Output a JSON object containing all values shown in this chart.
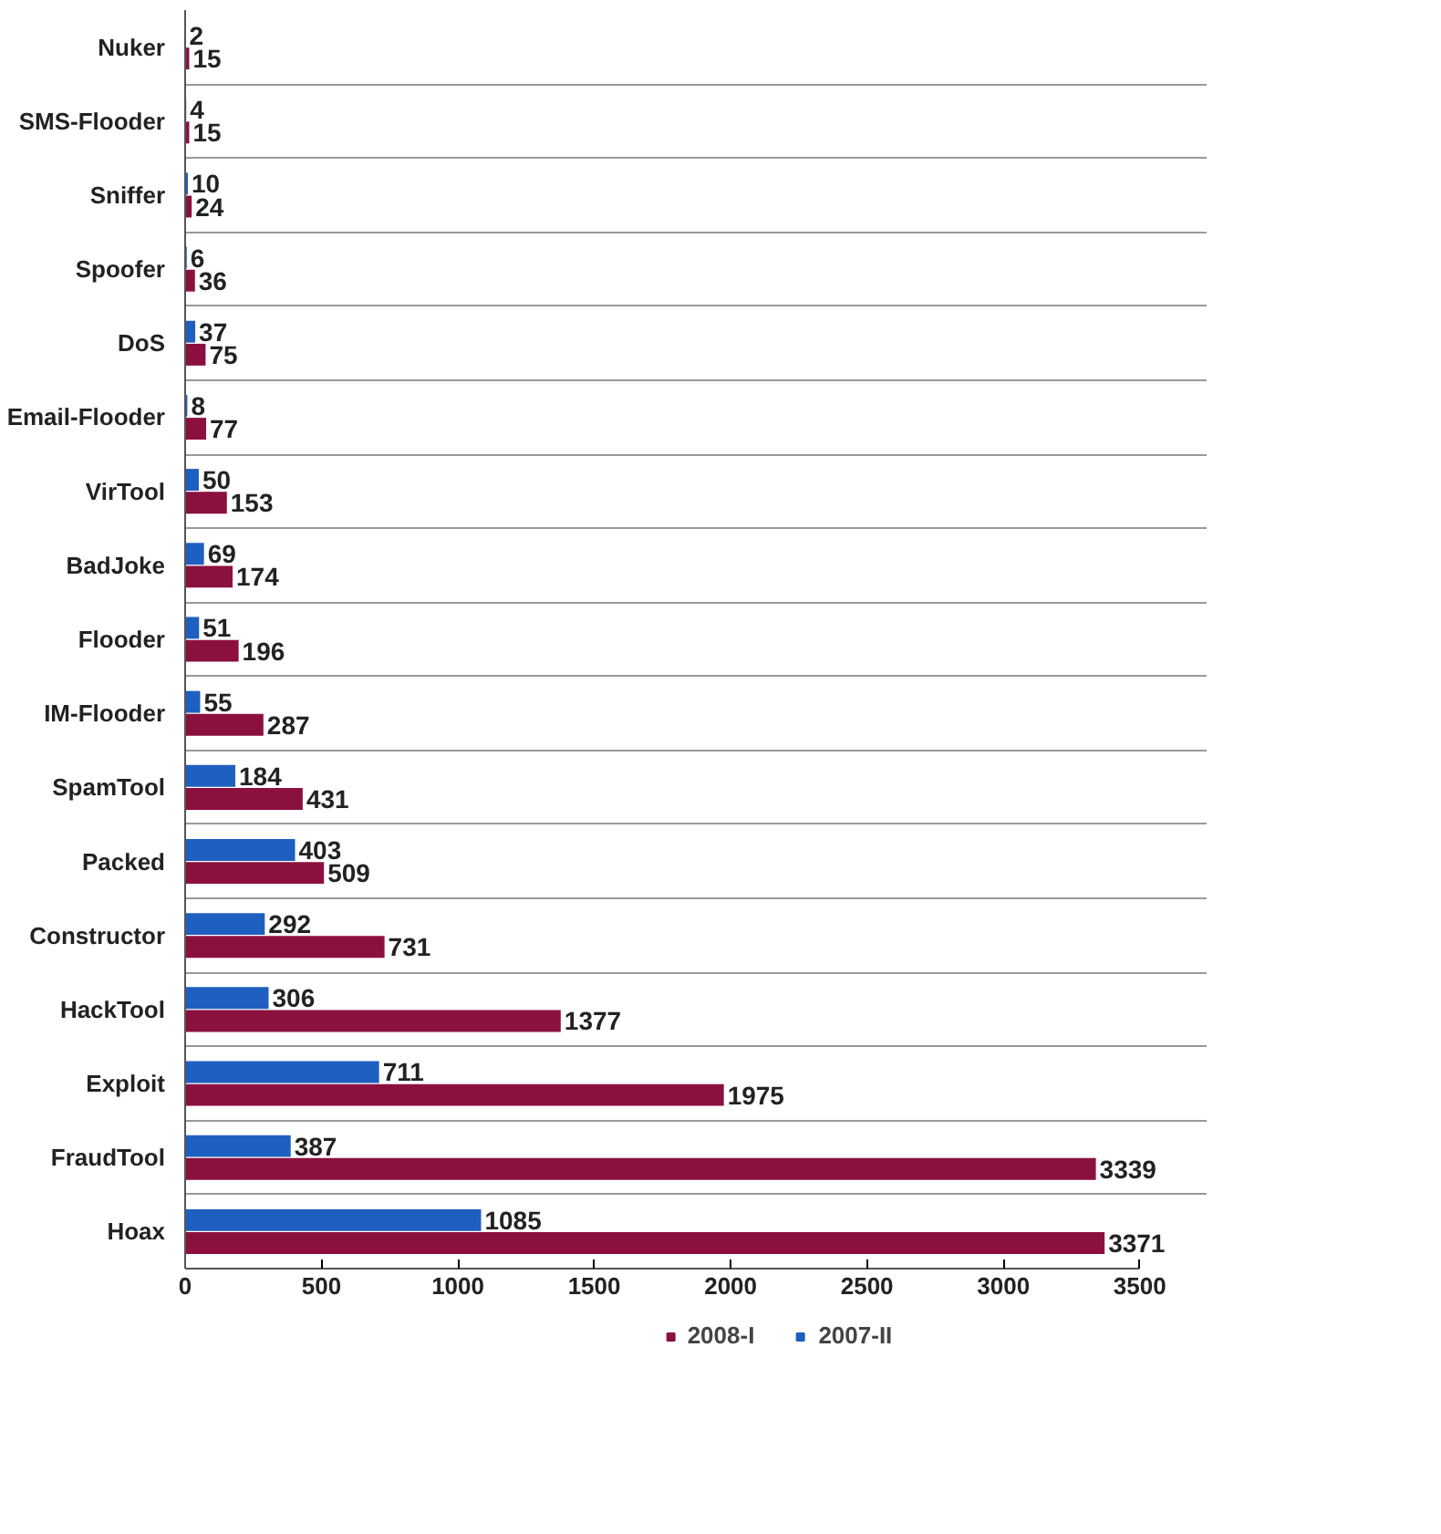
{
  "chart_data": {
    "type": "bar",
    "orientation": "horizontal",
    "categories": [
      "Nuker",
      "SMS-Flooder",
      "Sniffer",
      "Spoofer",
      "DoS",
      "Email-Flooder",
      "VirTool",
      "BadJoke",
      "Flooder",
      "IM-Flooder",
      "SpamTool",
      "Packed",
      "Constructor",
      "HackTool",
      "Exploit",
      "FraudTool",
      "Hoax"
    ],
    "series": [
      {
        "name": "2008-I",
        "color": "#8b1040",
        "values": [
          15,
          15,
          24,
          36,
          75,
          77,
          153,
          174,
          196,
          287,
          431,
          509,
          731,
          1377,
          1975,
          3339,
          3371
        ]
      },
      {
        "name": "2007-II",
        "color": "#1f5fc0",
        "values": [
          2,
          4,
          10,
          6,
          37,
          8,
          50,
          69,
          51,
          55,
          184,
          403,
          292,
          306,
          711,
          387,
          1085
        ]
      }
    ],
    "xlim": [
      0,
      3500
    ],
    "xticks": [
      0,
      500,
      1000,
      1500,
      2000,
      2500,
      3000,
      3500
    ],
    "data_labels": true,
    "grid": "y",
    "legend": "bottom"
  }
}
